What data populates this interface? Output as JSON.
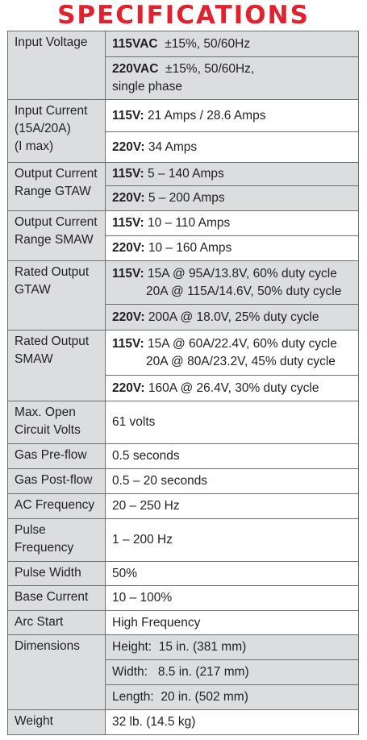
{
  "title": "SPECIFICATIONS",
  "rows": {
    "input_voltage": {
      "label": "Input Voltage",
      "v1_bold": "115VAC",
      "v1_text": "±15%, 50/60Hz",
      "v2_bold": "220VAC",
      "v2_text": "±15%, 50/60Hz,",
      "v2_line2": "single phase"
    },
    "input_current": {
      "label_l1": "Input Current",
      "label_l2": "(15A/20A)",
      "label_l3": "(I max)",
      "v1_bold": "115V:",
      "v1_text": "21 Amps / 28.6 Amps",
      "v2_bold": "220V:",
      "v2_text": "34 Amps"
    },
    "output_gtaw": {
      "label_l1": "Output Current",
      "label_l2": "Range GTAW",
      "v1_bold": "115V:",
      "v1_text": "5 – 140 Amps",
      "v2_bold": "220V:",
      "v2_text": "5 – 200 Amps"
    },
    "output_smaw": {
      "label_l1": "Output Current",
      "label_l2": "Range SMAW",
      "v1_bold": "115V:",
      "v1_text": "10 – 110 Amps",
      "v2_bold": "220V:",
      "v2_text": "10 – 160 Amps"
    },
    "rated_gtaw": {
      "label_l1": "Rated Output",
      "label_l2": "GTAW",
      "v1_bold": "115V:",
      "v1_text": "15A @ 95A/13.8V, 60% duty cycle",
      "v1_line2": "20A @ 115A/14.6V, 50% duty cycle",
      "v2_bold": "220V:",
      "v2_text": "200A @ 18.0V, 25% duty cycle"
    },
    "rated_smaw": {
      "label_l1": "Rated Output",
      "label_l2": "SMAW",
      "v1_bold": "115V:",
      "v1_text": "15A @ 60A/22.4V, 60% duty cycle",
      "v1_line2": "20A @ 80A/23.2V, 45% duty cycle",
      "v2_bold": "220V:",
      "v2_text": "160A @ 26.4V, 30% duty cycle"
    },
    "open_circuit": {
      "label_l1": "Max. Open",
      "label_l2": "Circuit Volts",
      "value": "61 volts"
    },
    "pre_flow": {
      "label": "Gas Pre-flow",
      "value": "0.5 seconds"
    },
    "post_flow": {
      "label": "Gas Post-flow",
      "value": "0.5 – 20 seconds"
    },
    "ac_freq": {
      "label": "AC Frequency",
      "value": "20 – 250 Hz"
    },
    "pulse_freq": {
      "label_l1": "Pulse",
      "label_l2": "Frequency",
      "value": "1 – 200 Hz"
    },
    "pulse_width": {
      "label": "Pulse Width",
      "value": "50%"
    },
    "base_current": {
      "label": "Base Current",
      "value": "10 – 100%"
    },
    "arc_start": {
      "label": "Arc Start",
      "value": "High Frequency"
    },
    "dimensions": {
      "label": "Dimensions",
      "height": "Height:  15 in. (381 mm)",
      "width": "Width:   8.5 in. (217 mm)",
      "length": "Length:  20 in. (502 mm)"
    },
    "weight": {
      "label": "Weight",
      "value": "32 lb. (14.5 kg)"
    }
  },
  "colors": {
    "title_red": "#e0222e",
    "label_bg": "#dcdddf",
    "border": "#6d6e71"
  }
}
